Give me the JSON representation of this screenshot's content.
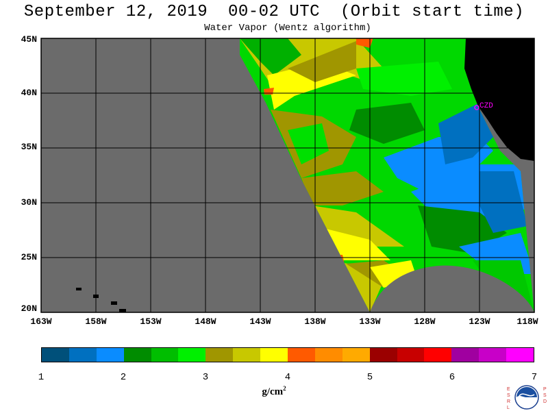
{
  "header": {
    "title": "September 12, 2019  00-02 UTC  (Orbit start time)",
    "subtitle": "Water Vapor (Wentz algorithm)"
  },
  "map": {
    "lat_labels": [
      "45N",
      "40N",
      "35N",
      "30N",
      "25N",
      "20N"
    ],
    "lon_labels": [
      "163W",
      "158W",
      "153W",
      "148W",
      "143W",
      "138W",
      "133W",
      "128W",
      "123W",
      "118W"
    ],
    "station_label": "CZD",
    "colors": {
      "no_data": "#6b6b6b",
      "land": "#000000",
      "station": "#ff00ff"
    }
  },
  "colorbar": {
    "tick_labels": [
      "1",
      "2",
      "3",
      "4",
      "5",
      "6",
      "7"
    ],
    "units": "g/cm",
    "units_exp": "2",
    "colors": [
      "#00507a",
      "#0070c0",
      "#0a8cff",
      "#008c00",
      "#00be00",
      "#00f000",
      "#a09600",
      "#c8c800",
      "#ffff00",
      "#ff5a00",
      "#ff8c00",
      "#ffaa00",
      "#9b0000",
      "#c80000",
      "#ff0000",
      "#a000a0",
      "#c800c8",
      "#ff00ff"
    ]
  },
  "logo": {
    "left_text": "ESRL",
    "right_text": "PSD"
  }
}
